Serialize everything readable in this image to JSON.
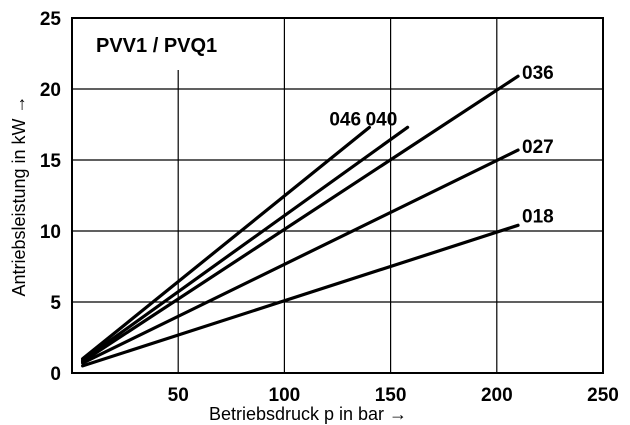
{
  "chart_data": {
    "type": "line",
    "title": "PVV1 / PVQ1",
    "xlabel": "Betriebsdruck p in bar →",
    "ylabel": "Antriebsleistung in kW →",
    "xlim": [
      0,
      250
    ],
    "ylim": [
      0,
      25
    ],
    "xticks": [
      50,
      100,
      150,
      200,
      250
    ],
    "yticks": [
      0,
      5,
      10,
      15,
      20,
      25
    ],
    "grid": true,
    "series": [
      {
        "name": "046",
        "x": [
          5,
          140
        ],
        "y": [
          1.0,
          17.3
        ]
      },
      {
        "name": "040",
        "x": [
          5,
          158
        ],
        "y": [
          0.9,
          17.3
        ]
      },
      {
        "name": "036",
        "x": [
          5,
          210
        ],
        "y": [
          0.8,
          20.9
        ]
      },
      {
        "name": "027",
        "x": [
          5,
          210
        ],
        "y": [
          0.7,
          15.7
        ]
      },
      {
        "name": "018",
        "x": [
          5,
          210
        ],
        "y": [
          0.5,
          10.4
        ]
      }
    ]
  }
}
